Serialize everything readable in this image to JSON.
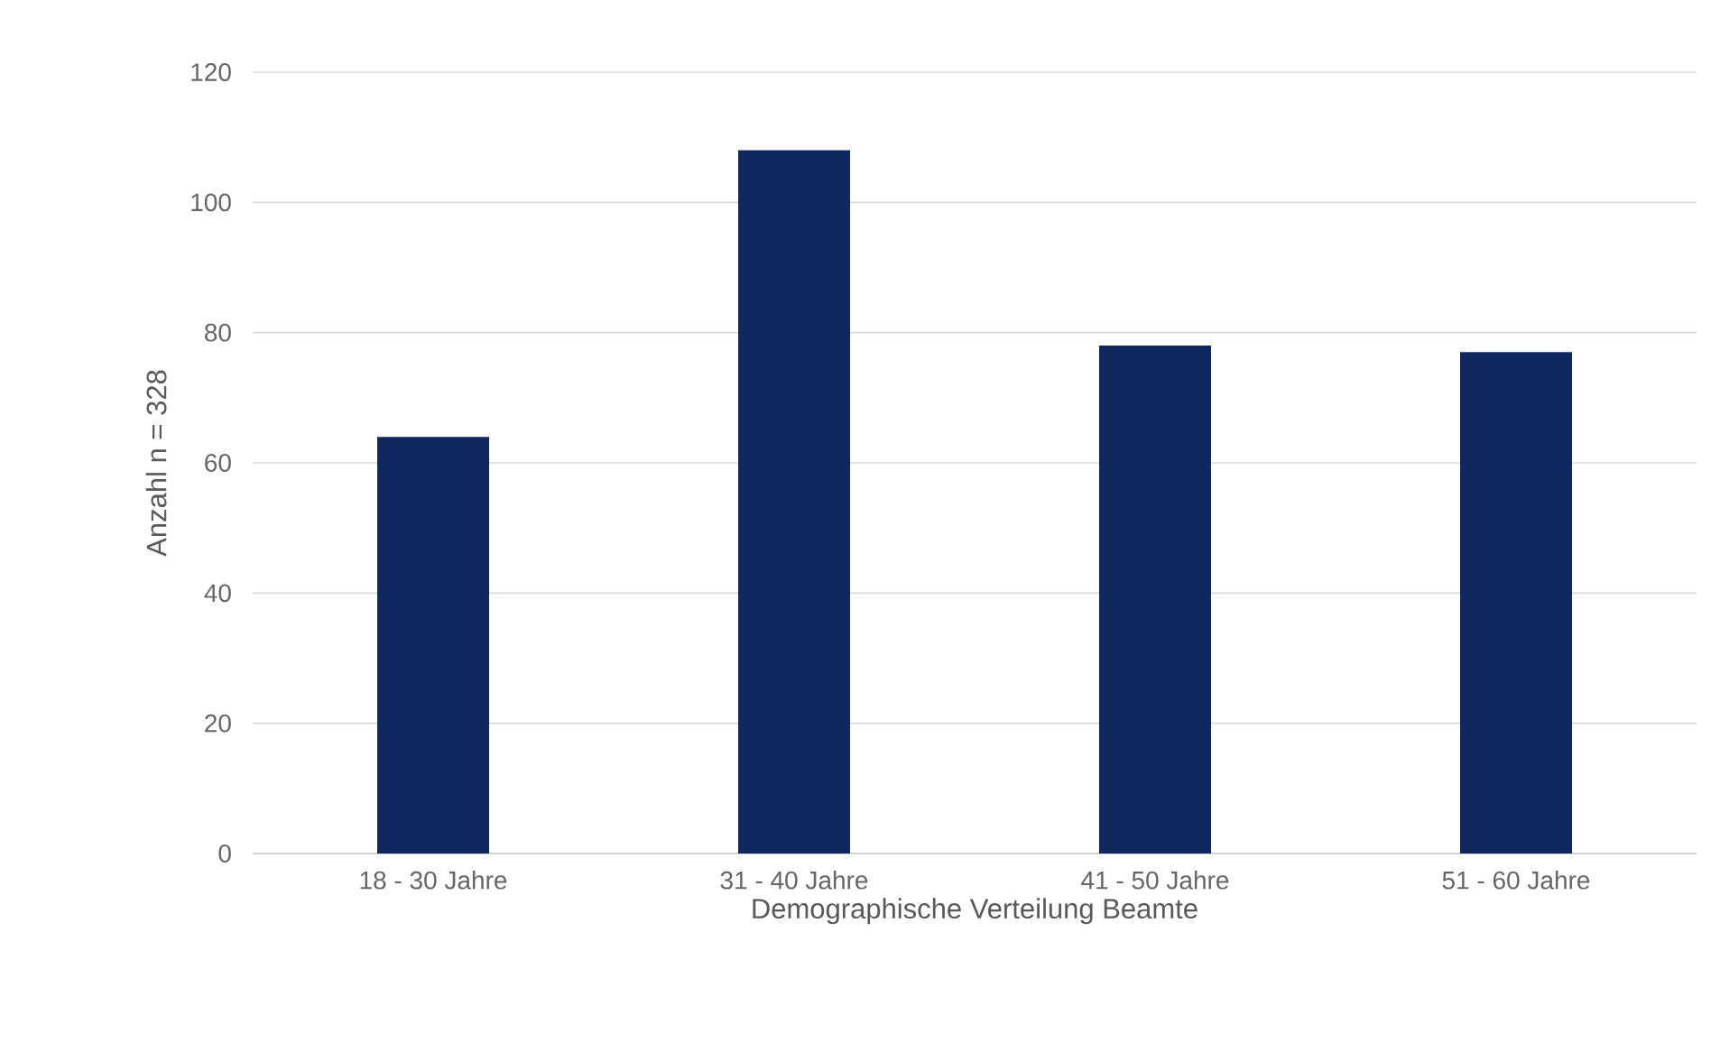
{
  "chart_data": {
    "type": "bar",
    "xlabel": "Demographische Verteilung Beamte",
    "ylabel": "Anzahl n = 328",
    "categories": [
      "18 - 30 Jahre",
      "31 - 40 Jahre",
      "41 - 50 Jahre",
      "51 - 60 Jahre"
    ],
    "values": [
      64,
      108,
      78,
      77
    ],
    "color": "#10275f",
    "ylim": [
      0,
      120
    ],
    "yticks": [
      0,
      20,
      40,
      60,
      80,
      100,
      120
    ],
    "grid": "y"
  }
}
